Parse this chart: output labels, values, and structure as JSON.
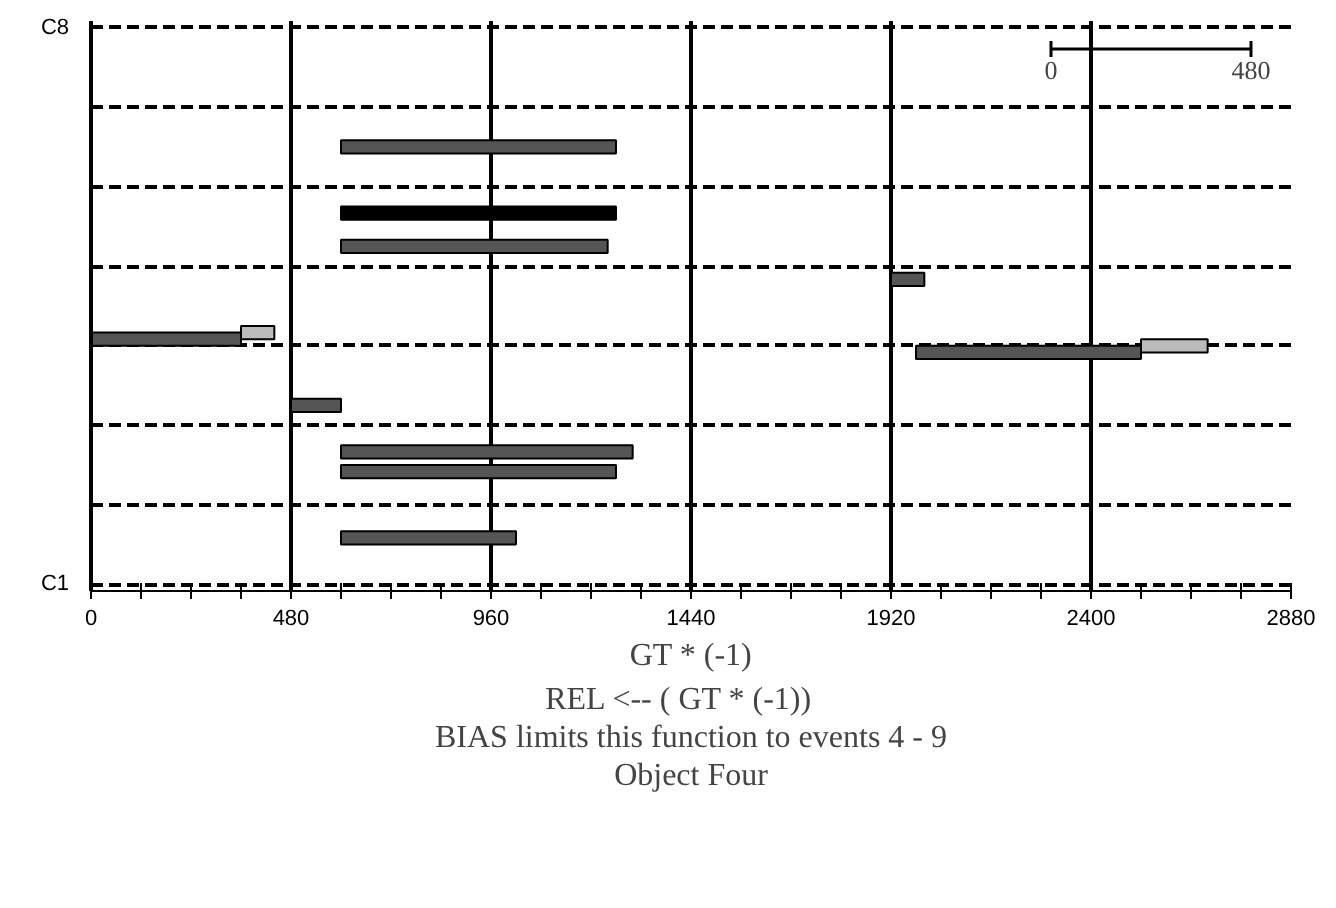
{
  "chart_data": {
    "type": "bar",
    "orientation": "horizontal",
    "xlabel": "GT * (-1)",
    "annotations": [
      "REL <--  (   GT * (-1))",
      "BIAS limits this function to events 4 - 9",
      "Object Four",
      "0",
      "480"
    ],
    "xlim": [
      0,
      2880
    ],
    "xticks": [
      0,
      {
        "value": 120,
        "label": null
      },
      {
        "value": 240,
        "label": null
      },
      {
        "value": 360,
        "label": null
      },
      480,
      {
        "value": 600,
        "label": null
      },
      {
        "value": 720,
        "label": null
      },
      {
        "value": 840,
        "label": null
      },
      960,
      {
        "value": 1080,
        "label": null
      },
      {
        "value": 1200,
        "label": null
      },
      {
        "value": 1320,
        "label": null
      },
      1440,
      {
        "value": 1560,
        "label": null
      },
      {
        "value": 1680,
        "label": null
      },
      {
        "value": 1800,
        "label": null
      },
      1920,
      {
        "value": 2040,
        "label": null
      },
      {
        "value": 2160,
        "label": null
      },
      {
        "value": 2280,
        "label": null
      },
      2400,
      {
        "value": 2520,
        "label": null
      },
      {
        "value": 2640,
        "label": null
      },
      {
        "value": 2760,
        "label": null
      },
      2880
    ],
    "grid": true,
    "categories": [
      "C8",
      null,
      null,
      null,
      null,
      null,
      null,
      null,
      null,
      null,
      null,
      null,
      null,
      null,
      null,
      null,
      null,
      null,
      null,
      null,
      null,
      null,
      null,
      null,
      null,
      null,
      null,
      null,
      null,
      null,
      null,
      null,
      null,
      null,
      null,
      null,
      null,
      null,
      null,
      null,
      null,
      null,
      null,
      null,
      null,
      null,
      null,
      null,
      null,
      null,
      null,
      null,
      null,
      null,
      null,
      null,
      null,
      null,
      null,
      null,
      null,
      null,
      null,
      null,
      null,
      null,
      null,
      null,
      null,
      null,
      null,
      null,
      null,
      null,
      null,
      null,
      null,
      null,
      null,
      null,
      null,
      null,
      null,
      null,
      "C1"
    ],
    "series": [
      {
        "color": "#555555",
        "base": [
          null,
          null,
          null,
          null,
          null,
          null,
          null,
          null,
          null,
          null,
          null,
          null,
          null,
          null,
          null,
          null,
          null,
          null,
          600,
          null,
          null,
          null,
          null,
          null,
          null,
          null,
          null,
          null,
          null,
          null,
          null,
          null,
          null,
          600,
          null,
          null,
          null,
          null,
          1920,
          null,
          null,
          null,
          null,
          null,
          null,
          null,
          null,
          0,
          null,
          1980,
          null,
          null,
          null,
          null,
          null,
          null,
          null,
          480,
          null,
          null,
          null,
          null,
          null,
          null,
          600,
          null,
          null,
          600,
          null,
          null,
          null,
          null,
          null,
          null,
          null,
          null,
          null,
          600,
          null,
          null,
          null,
          null,
          null,
          null,
          null
        ],
        "values": [
          null,
          null,
          null,
          null,
          null,
          null,
          null,
          null,
          null,
          null,
          null,
          null,
          null,
          null,
          null,
          null,
          null,
          null,
          660,
          null,
          null,
          null,
          null,
          null,
          null,
          null,
          null,
          null,
          null,
          null,
          null,
          null,
          null,
          640,
          null,
          null,
          null,
          null,
          80,
          null,
          null,
          null,
          null,
          null,
          null,
          null,
          null,
          360,
          null,
          540,
          null,
          null,
          null,
          null,
          null,
          null,
          null,
          120,
          null,
          null,
          null,
          null,
          null,
          null,
          700,
          null,
          null,
          660,
          null,
          null,
          null,
          null,
          null,
          null,
          null,
          null,
          null,
          420,
          null,
          null,
          null,
          null,
          null,
          null,
          null
        ]
      },
      {
        "color": "#000000",
        "base": [
          null,
          null,
          null,
          null,
          null,
          null,
          null,
          null,
          null,
          null,
          null,
          null,
          null,
          null,
          null,
          null,
          null,
          null,
          null,
          null,
          null,
          null,
          null,
          null,
          null,
          null,
          null,
          null,
          600,
          null,
          null,
          null,
          null,
          null,
          null,
          null,
          null,
          null,
          null,
          null,
          null,
          null,
          null,
          null,
          null,
          null,
          null,
          null,
          null,
          null,
          null,
          null,
          null,
          null,
          null,
          null,
          null,
          null,
          null,
          null,
          null,
          null,
          null,
          null,
          null,
          null,
          null,
          null,
          null,
          null,
          null,
          null,
          null,
          null,
          null,
          null,
          null,
          null,
          null,
          null,
          null,
          null,
          null,
          null,
          null
        ],
        "values": [
          null,
          null,
          null,
          null,
          null,
          null,
          null,
          null,
          null,
          null,
          null,
          null,
          null,
          null,
          null,
          null,
          null,
          null,
          null,
          null,
          null,
          null,
          null,
          null,
          null,
          null,
          null,
          null,
          660,
          null,
          null,
          null,
          null,
          null,
          null,
          null,
          null,
          null,
          null,
          null,
          null,
          null,
          null,
          null,
          null,
          null,
          null,
          null,
          null,
          null,
          null,
          null,
          null,
          null,
          null,
          null,
          null,
          null,
          null,
          null,
          null,
          null,
          null,
          null,
          null,
          null,
          null,
          null,
          null,
          null,
          null,
          null,
          null,
          null,
          null,
          null,
          null,
          null,
          null,
          null,
          null,
          null,
          null,
          null,
          null
        ]
      },
      {
        "color": "#bbbbbb",
        "base": [
          null,
          null,
          null,
          null,
          null,
          null,
          null,
          null,
          null,
          null,
          null,
          null,
          null,
          null,
          null,
          null,
          null,
          null,
          null,
          null,
          null,
          null,
          null,
          null,
          null,
          null,
          null,
          null,
          null,
          null,
          null,
          null,
          null,
          null,
          null,
          null,
          null,
          null,
          null,
          null,
          null,
          null,
          null,
          null,
          null,
          null,
          360,
          null,
          2520,
          null,
          null,
          null,
          null,
          null,
          null,
          null,
          null,
          null,
          null,
          null,
          null,
          null,
          null,
          null,
          null,
          null,
          null,
          null,
          null,
          null,
          null,
          null,
          null,
          null,
          null,
          null,
          null,
          null,
          null,
          null,
          null,
          null,
          null,
          null,
          null
        ],
        "values": [
          null,
          null,
          null,
          null,
          null,
          null,
          null,
          null,
          null,
          null,
          null,
          null,
          null,
          null,
          null,
          null,
          null,
          null,
          null,
          null,
          null,
          null,
          null,
          null,
          null,
          null,
          null,
          null,
          null,
          null,
          null,
          null,
          null,
          null,
          null,
          null,
          null,
          null,
          null,
          null,
          null,
          null,
          null,
          null,
          null,
          null,
          80,
          null,
          160,
          null,
          null,
          null,
          null,
          null,
          null,
          null,
          null,
          null,
          null,
          null,
          null,
          null,
          null,
          null,
          null,
          null,
          null,
          null,
          null,
          null,
          null,
          null,
          null,
          null,
          null,
          null,
          null,
          null,
          null,
          null,
          null,
          null,
          null,
          null,
          null
        ]
      }
    ]
  }
}
